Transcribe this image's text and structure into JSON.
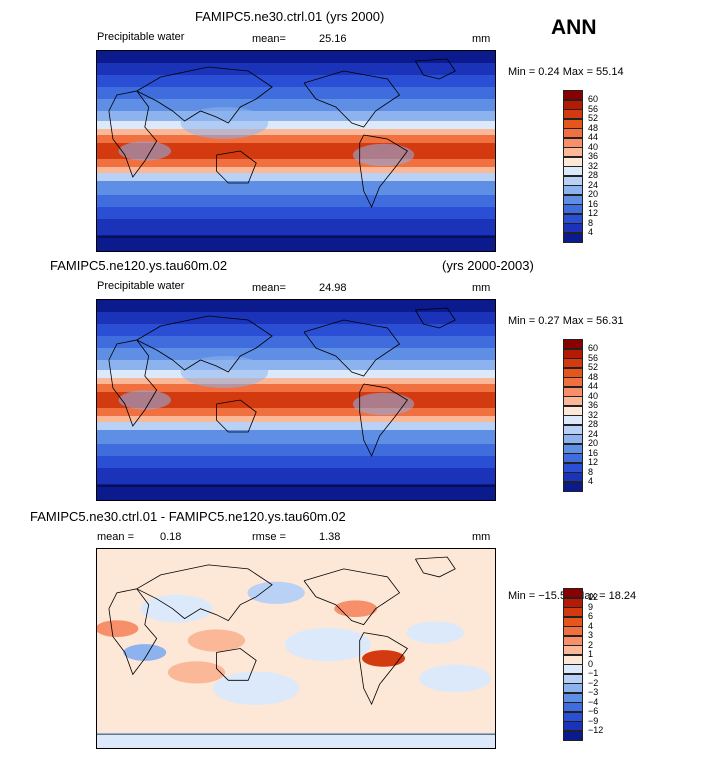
{
  "season": "ANN",
  "panels": [
    {
      "case_title": "FAMIPC5.ne30.ctrl.01 (yrs 2000)",
      "case_years": "",
      "field_label": "Precipitable water",
      "stat1_label": "mean=",
      "stat1_value": "25.16",
      "stat2_label": "",
      "stat2_value": "",
      "units": "mm",
      "minmax": "Min =   0.24 Max =  55.14",
      "colorbar": {
        "levels": [
          "60",
          "56",
          "52",
          "48",
          "44",
          "40",
          "36",
          "32",
          "28",
          "24",
          "20",
          "16",
          "12",
          "8",
          "4"
        ],
        "colors": [
          "#8a0000",
          "#b51a05",
          "#d33a10",
          "#e4561c",
          "#f07040",
          "#f7906a",
          "#fbb898",
          "#fde8d8",
          "#dbe9fb",
          "#b8d1f5",
          "#8db3ee",
          "#5f8ee5",
          "#3f6ddd",
          "#2a4fd4",
          "#1a33b8",
          "#0b1a8c"
        ]
      },
      "map_type": "pw"
    },
    {
      "case_title": "FAMIPC5.ne120.ys.tau60m.02",
      "case_years": "(yrs 2000-2003)",
      "field_label": "Precipitable water",
      "stat1_label": "mean=",
      "stat1_value": "24.98",
      "stat2_label": "",
      "stat2_value": "",
      "units": "mm",
      "minmax": "Min =   0.27 Max =  56.31",
      "colorbar": {
        "levels": [
          "60",
          "56",
          "52",
          "48",
          "44",
          "40",
          "36",
          "32",
          "28",
          "24",
          "20",
          "16",
          "12",
          "8",
          "4"
        ],
        "colors": [
          "#8a0000",
          "#b51a05",
          "#d33a10",
          "#e4561c",
          "#f07040",
          "#f7906a",
          "#fbb898",
          "#fde8d8",
          "#dbe9fb",
          "#b8d1f5",
          "#8db3ee",
          "#5f8ee5",
          "#3f6ddd",
          "#2a4fd4",
          "#1a33b8",
          "#0b1a8c"
        ]
      },
      "map_type": "pw"
    },
    {
      "case_title": "FAMIPC5.ne30.ctrl.01 - FAMIPC5.ne120.ys.tau60m.02",
      "case_years": "",
      "field_label": "",
      "stat1_label": "mean =",
      "stat1_value": "0.18",
      "stat2_label": "rmse =",
      "stat2_value": "1.38",
      "units": "mm",
      "minmax": "Min = −15.52 Max =  18.24",
      "colorbar": {
        "levels": [
          "12",
          "9",
          "6",
          "4",
          "3",
          "2",
          "1",
          "0",
          "−1",
          "−2",
          "−3",
          "−4",
          "−6",
          "−9",
          "−12"
        ],
        "colors": [
          "#8a0000",
          "#b51a05",
          "#d33a10",
          "#e4561c",
          "#f07040",
          "#f7906a",
          "#fbb898",
          "#fde8d8",
          "#dbe9fb",
          "#b8d1f5",
          "#8db3ee",
          "#5f8ee5",
          "#3f6ddd",
          "#2a4fd4",
          "#1a33b8",
          "#0b1a8c"
        ]
      },
      "map_type": "diff"
    }
  ],
  "chart_data": [
    {
      "type": "heatmap",
      "title": "FAMIPC5.ne30.ctrl.01 (yrs 2000)",
      "variable": "Precipitable water",
      "units": "mm",
      "mean": 25.16,
      "min": 0.24,
      "max": 55.14,
      "contour_levels": [
        4,
        8,
        12,
        16,
        20,
        24,
        28,
        32,
        36,
        40,
        44,
        48,
        52,
        56,
        60
      ]
    },
    {
      "type": "heatmap",
      "title": "FAMIPC5.ne120.ys.tau60m.02",
      "years": "(yrs 2000-2003)",
      "variable": "Precipitable water",
      "units": "mm",
      "mean": 24.98,
      "min": 0.27,
      "max": 56.31,
      "contour_levels": [
        4,
        8,
        12,
        16,
        20,
        24,
        28,
        32,
        36,
        40,
        44,
        48,
        52,
        56,
        60
      ]
    },
    {
      "type": "heatmap",
      "title": "FAMIPC5.ne30.ctrl.01 - FAMIPC5.ne120.ys.tau60m.02",
      "units": "mm",
      "mean": 0.18,
      "rmse": 1.38,
      "min": -15.52,
      "max": 18.24,
      "contour_levels": [
        -12,
        -9,
        -6,
        -4,
        -3,
        -2,
        -1,
        0,
        1,
        2,
        3,
        4,
        6,
        9,
        12
      ]
    }
  ]
}
